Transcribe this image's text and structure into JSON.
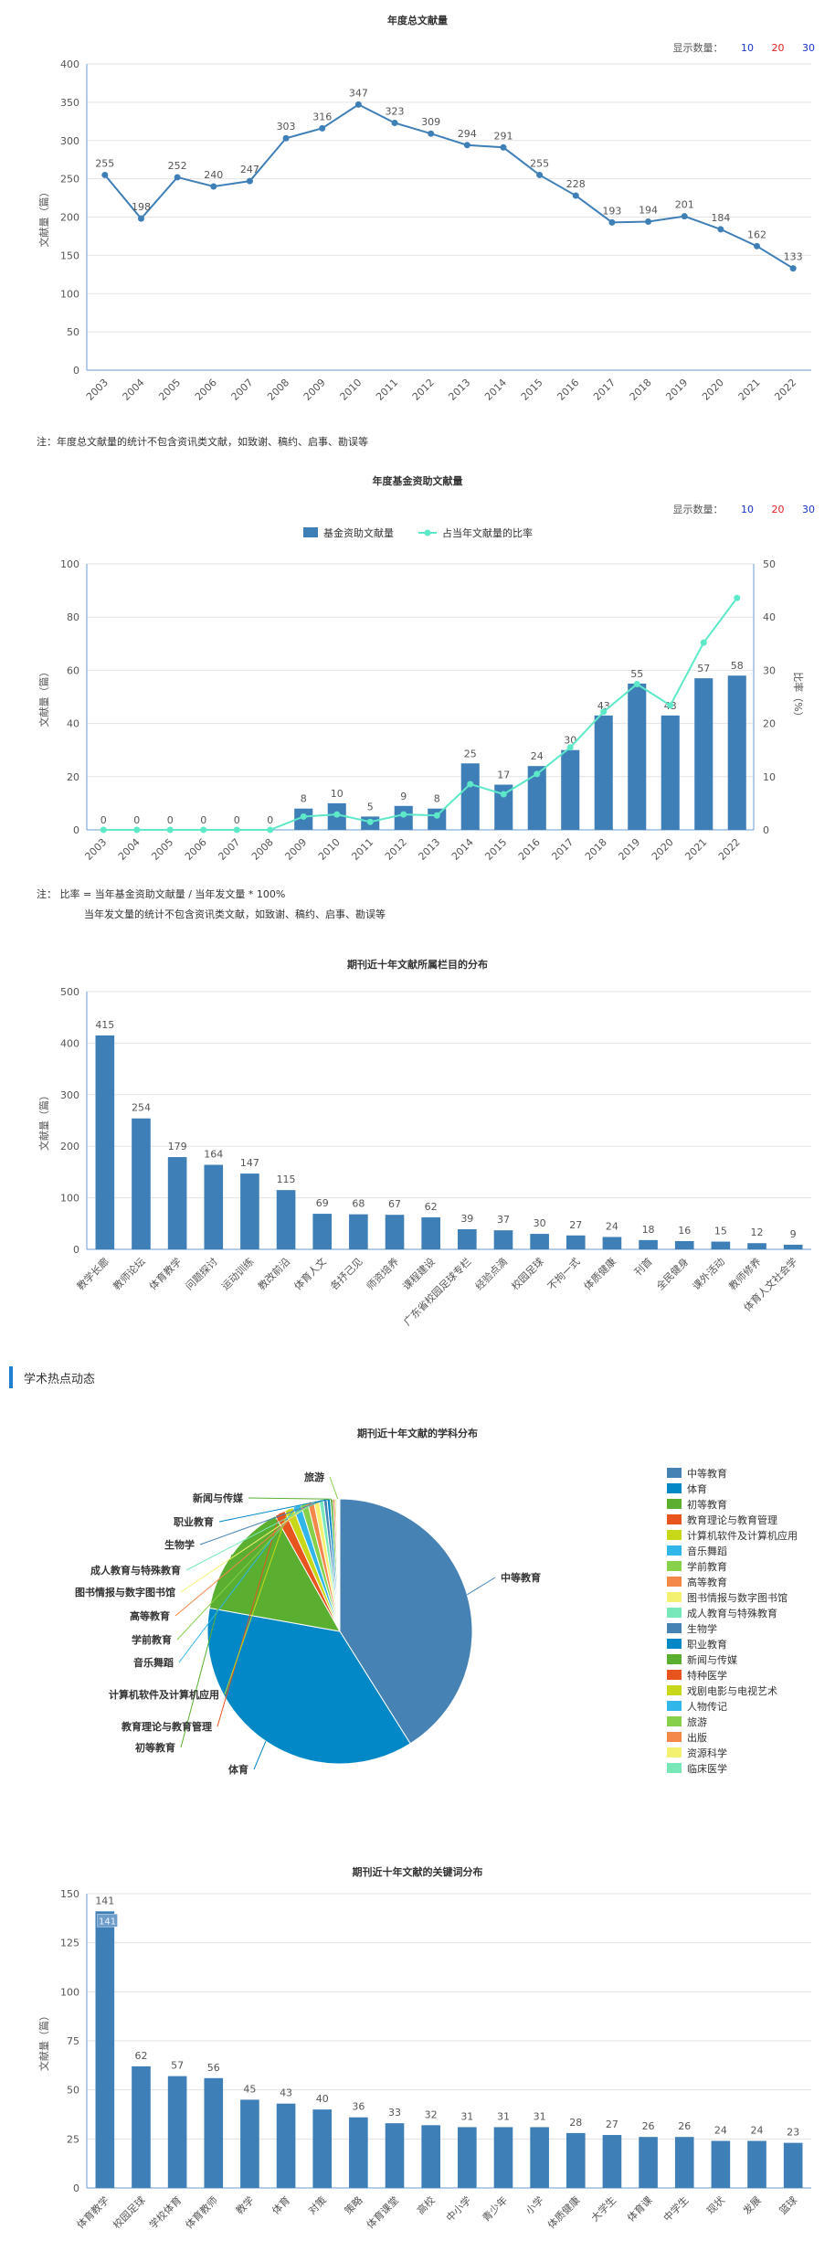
{
  "charts": {
    "annual": {
      "title": "年度总文献量",
      "ylabel": "文献量（篇）",
      "display_count": {
        "label": "显示数量：",
        "opt10": "10",
        "opt20": "20",
        "opt30": "30"
      },
      "note": "注：年度总文献量的统计不包含资讯类文献，如致谢、稿约、启事、勘误等",
      "colors": {
        "line": "#3f7fb8"
      }
    },
    "fund": {
      "title": "年度基金资助文献量",
      "ylabel": "文献量（篇）",
      "y2label": "比率（%）",
      "display_count": {
        "label": "显示数量：",
        "opt10": "10",
        "opt20": "20",
        "opt30": "30"
      },
      "legend": {
        "bar": "基金资助文献量",
        "line": "占当年文献量的比率"
      },
      "note_line1": "注：  比率 = 当年基金资助文献量 / 当年发文量 * 100%",
      "note_line2": "当年发文量的统计不包含资讯类文献，如致谢、稿约、启事、勘误等",
      "colors": {
        "bar": "#3f7fb8",
        "line": "#5de8c8"
      }
    },
    "columns": {
      "title": "期刊近十年文献所属栏目的分布",
      "ylabel": "文献量（篇）",
      "colors": {
        "bar": "#3f7fb8"
      }
    },
    "section": {
      "title": "学术热点动态"
    },
    "subjects": {
      "title": "期刊近十年文献的学科分布"
    },
    "keywords": {
      "title": "期刊近十年文献的关键词分布",
      "ylabel": "文献量（篇）",
      "tooltip": "141",
      "colors": {
        "bar": "#3f7fb8"
      }
    }
  },
  "chart_data": [
    {
      "id": "annual",
      "type": "line",
      "title": "年度总文献量",
      "ylabel": "文献量（篇）",
      "ylim": [
        0,
        400
      ],
      "yticks": [
        "0",
        "50",
        "100",
        "150",
        "200",
        "250",
        "300",
        "350",
        "400"
      ],
      "x": [
        "2003",
        "2004",
        "2005",
        "2006",
        "2007",
        "2008",
        "2009",
        "2010",
        "2011",
        "2012",
        "2013",
        "2014",
        "2015",
        "2016",
        "2017",
        "2018",
        "2019",
        "2020",
        "2021",
        "2022"
      ],
      "values": [
        255,
        198,
        252,
        240,
        247,
        303,
        316,
        347,
        323,
        309,
        294,
        291,
        255,
        228,
        193,
        194,
        201,
        184,
        162,
        133
      ]
    },
    {
      "id": "fund",
      "type": "bar",
      "title": "年度基金资助文献量",
      "ylabel": "文献量（篇）",
      "y2label": "比率（%）",
      "ylim": [
        0,
        100
      ],
      "y2lim": [
        0,
        50
      ],
      "yticks": [
        "0",
        "20",
        "40",
        "60",
        "80",
        "100"
      ],
      "y2ticks": [
        "0",
        "10",
        "20",
        "30",
        "40",
        "50"
      ],
      "x": [
        "2003",
        "2004",
        "2005",
        "2006",
        "2007",
        "2008",
        "2009",
        "2010",
        "2011",
        "2012",
        "2013",
        "2014",
        "2015",
        "2016",
        "2017",
        "2018",
        "2019",
        "2020",
        "2021",
        "2022"
      ],
      "series": [
        {
          "name": "基金资助文献量",
          "values": [
            0,
            0,
            0,
            0,
            0,
            0,
            8,
            10,
            5,
            9,
            8,
            25,
            17,
            24,
            30,
            43,
            55,
            43,
            57,
            58
          ]
        },
        {
          "name": "占当年文献量的比率",
          "values": [
            0,
            0,
            0,
            0,
            0,
            0,
            2.5,
            2.9,
            1.5,
            2.9,
            2.7,
            8.6,
            6.7,
            10.5,
            15.5,
            22.2,
            27.4,
            23.4,
            35.2,
            43.6
          ]
        }
      ]
    },
    {
      "id": "columns",
      "type": "bar",
      "title": "期刊近十年文献所属栏目的分布",
      "ylabel": "文献量（篇）",
      "ylim": [
        0,
        500
      ],
      "yticks": [
        "0",
        "100",
        "200",
        "300",
        "400",
        "500"
      ],
      "categories": [
        "教学长廊",
        "教师论坛",
        "体育教学",
        "问题探讨",
        "运动训练",
        "教改前沿",
        "体育人文",
        "各抒己见",
        "师资培养",
        "课程建设",
        "广东省校园足球专栏",
        "经验点滴",
        "校园足球",
        "不拘一式",
        "体质健康",
        "刊首",
        "全民健身",
        "课外活动",
        "教师修养",
        "体育人文社会学"
      ],
      "values": [
        415,
        254,
        179,
        164,
        147,
        115,
        69,
        68,
        67,
        62,
        39,
        37,
        30,
        27,
        24,
        18,
        16,
        15,
        12,
        9
      ]
    },
    {
      "id": "subjects",
      "type": "pie",
      "title": "期刊近十年文献的学科分布",
      "categories": [
        "中等教育",
        "体育",
        "初等教育",
        "教育理论与教育管理",
        "计算机软件及计算机应用",
        "音乐舞蹈",
        "学前教育",
        "高等教育",
        "图书情报与数字图书馆",
        "成人教育与特殊教育",
        "生物学",
        "职业教育",
        "新闻与传媒",
        "特种医学",
        "戏剧电影与电视艺术",
        "人物传记",
        "旅游",
        "出版",
        "资源科学",
        "临床医学"
      ],
      "values": [
        1900,
        1700,
        650,
        60,
        50,
        45,
        40,
        35,
        30,
        25,
        20,
        18,
        15,
        10,
        8,
        6,
        5,
        4,
        3,
        2
      ],
      "colors": [
        "#4682b4",
        "#0288c6",
        "#5aaf30",
        "#e8541e",
        "#c8d818",
        "#30b6e8",
        "#86d04a",
        "#f4884a",
        "#f4f070",
        "#78e8b8",
        "#4682b4",
        "#0288c6",
        "#5aaf30",
        "#e8541e",
        "#c8d818",
        "#30b6e8",
        "#86d04a",
        "#f4884a",
        "#f4f070",
        "#78e8b8"
      ],
      "labeled": [
        "中等教育",
        "体育",
        "初等教育",
        "教育理论与教育管理",
        "计算机软件及计算机应用",
        "音乐舞蹈",
        "学前教育",
        "高等教育",
        "图书情报与数字图书馆",
        "成人教育与特殊教育",
        "生物学",
        "职业教育",
        "新闻与传媒",
        "旅游"
      ]
    },
    {
      "id": "keywords",
      "type": "bar",
      "title": "期刊近十年文献的关键词分布",
      "ylabel": "文献量（篇）",
      "ylim": [
        0,
        150
      ],
      "yticks": [
        "0",
        "25",
        "50",
        "75",
        "100",
        "125",
        "150"
      ],
      "categories": [
        "体育教学",
        "校园足球",
        "学校体育",
        "体育教师",
        "教学",
        "体育",
        "对策",
        "策略",
        "体育课堂",
        "高校",
        "中小学",
        "青少年",
        "小学",
        "体质健康",
        "大学生",
        "体育课",
        "中学生",
        "现状",
        "发展",
        "篮球"
      ],
      "values": [
        141,
        62,
        57,
        56,
        45,
        43,
        40,
        36,
        33,
        32,
        31,
        31,
        31,
        28,
        27,
        26,
        26,
        24,
        24,
        23
      ]
    }
  ]
}
